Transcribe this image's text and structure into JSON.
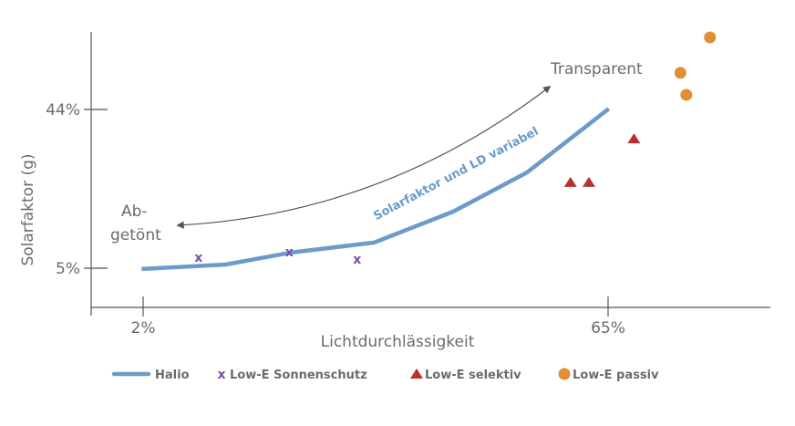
{
  "chart_data": {
    "type": "line",
    "xlabel": "Lichtdurchlässigkeit",
    "ylabel": "Solarfaktor (g)",
    "x_ticks": [
      {
        "value": 2,
        "label": "2%"
      },
      {
        "value": 65,
        "label": "65%"
      }
    ],
    "y_ticks": [
      {
        "value": 5,
        "label": "5%"
      },
      {
        "value": 44,
        "label": "44%"
      }
    ],
    "grid": false,
    "legend_position": "bottom",
    "annotations": {
      "transparent": "Transparent",
      "tinted_line1": "Ab-",
      "tinted_line2": "getönt",
      "curve_label": "Solarfaktor und LD variabel"
    },
    "series": [
      {
        "name": "Halio",
        "type": "line",
        "color": "#6a9bcb",
        "x": [
          1.8,
          13.2,
          21.9,
          33.3,
          44.0,
          54.0,
          65.1
        ],
        "y": [
          4.8,
          5.9,
          8.8,
          11.3,
          18.9,
          28.5,
          44.2
        ]
      },
      {
        "name": "Low-E Sonnenschutz",
        "type": "scatter",
        "marker": "x",
        "color": "#7b4fa8",
        "x": [
          9.5,
          21.8,
          31.0
        ],
        "y": [
          7.7,
          9.0,
          7.2
        ]
      },
      {
        "name": "Low-E selektiv",
        "type": "scatter",
        "marker": "triangle",
        "color": "#b8312f",
        "x": [
          59.9,
          62.4,
          68.5
        ],
        "y": [
          26.1,
          26.1,
          36.8
        ]
      },
      {
        "name": "Low-E passiv",
        "type": "scatter",
        "marker": "circle",
        "color": "#e08f35",
        "x": [
          78.8,
          74.8,
          75.6
        ],
        "y": [
          61.7,
          53.0,
          47.6
        ]
      }
    ]
  }
}
